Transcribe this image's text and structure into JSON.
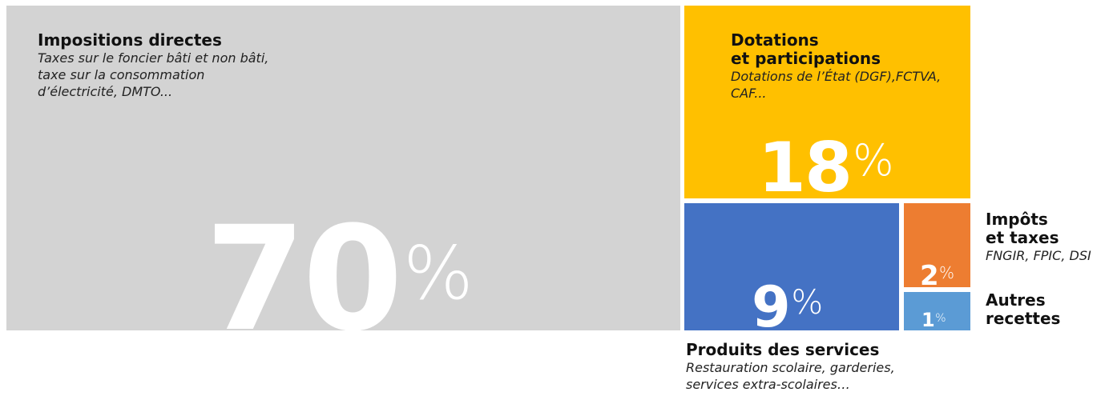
{
  "colors": {
    "impositions": "#d3d3d3",
    "dotations": "#ffc000",
    "produits": "#4472c4",
    "impots": "#ed7d31",
    "autres": "#5b9bd5"
  },
  "chart_data": {
    "type": "treemap",
    "unit": "%",
    "categories": [
      "Impositions directes",
      "Dotations et participations",
      "Produits des services",
      "Impôts et taxes",
      "Autres recettes"
    ],
    "values": [
      70,
      18,
      9,
      2,
      1
    ]
  },
  "tiles": {
    "impositions": {
      "title": "Impositions directes",
      "desc": "Taxes sur le foncier bâti et non bâti, taxe sur la consommation d’électricité, DMTO...",
      "value": "70",
      "symbol": "%"
    },
    "dotations": {
      "title": "Dotations\net participations",
      "desc": "Dotations de l’État (DGF),FCTVA, CAF...",
      "value": "18",
      "symbol": "%"
    },
    "produits": {
      "title": "Produits des services",
      "desc": "Restauration scolaire, garderies, services extra-scolaires…",
      "value": "9",
      "symbol": "%"
    },
    "impots": {
      "title": "Impôts\net taxes",
      "desc": "FNGIR, FPIC, DSI",
      "value": "2",
      "symbol": "%"
    },
    "autres": {
      "title": "Autres\nrecettes",
      "value": "1",
      "symbol": "%"
    }
  }
}
